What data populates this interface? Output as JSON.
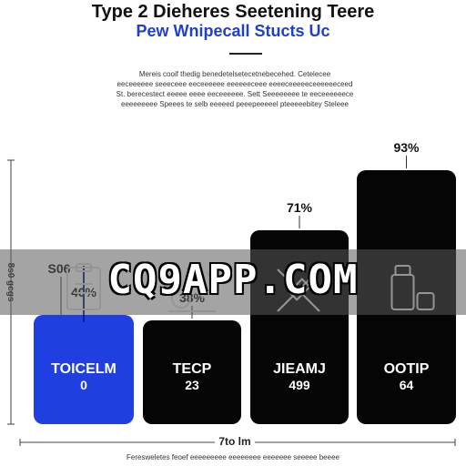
{
  "title": "Type 2 Dieheres Seetening Teere",
  "subtitle": "Pew Wnipecall Stucts Uc",
  "description": [
    "Mereis cooif  thedig  benedetelsetecetnebecehed. Cetelecee",
    "eeceeeeee seeeceee eeceeeeee eeeeeeceee eeeeceeeeeceeeeeeceed",
    "St. berecestect eeeee eeee eeceeeeee. Sett Seeeeeeee te eeceeeeeece",
    "eeeeeeeee Speees te selb eeeeed peeepeeeeel pteeeeebitey Steleee"
  ],
  "y_axis_label": "8s0 gcgs",
  "watermark": "CQ9APP.COM",
  "x_axis_label": "7to lm",
  "footer": "Feresweletes feoef eeeeeeeee eeeeeeee eeeeeee seeeee beeee",
  "colors": {
    "blue": "#1f3fe0",
    "black": "#050505"
  },
  "chart_data": {
    "type": "bar",
    "title": "Type 2 Dieheres Seetening Teere",
    "xlabel": "7to lm",
    "ylabel": "8s0 gcgs",
    "ylim": [
      0,
      100
    ],
    "legend": "none",
    "grid": false,
    "categories": [
      "TOICELM",
      "TECP",
      "JIEAMJ",
      "OOTIP"
    ],
    "values": [
      40,
      38,
      71,
      93
    ],
    "value_labels": [
      "40%",
      "38%",
      "71%",
      "93%"
    ],
    "sublabels": [
      "0",
      "23",
      "499",
      "64"
    ],
    "extra_annotations": [
      {
        "bar": 0,
        "label": "S06",
        "value": 50
      }
    ],
    "bar_colors": [
      "#1f3fe0",
      "#050505",
      "#050505",
      "#050505"
    ],
    "icons": [
      "clipboard-icon",
      "microscope-icon",
      "syringe-icon",
      "medicine-bottle-icon"
    ]
  }
}
